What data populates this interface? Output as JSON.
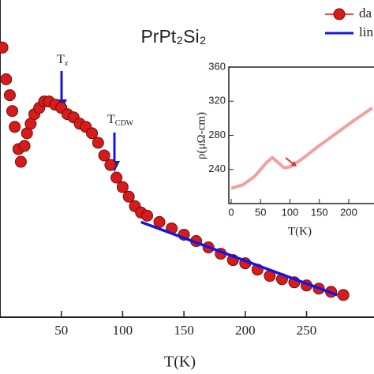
{
  "chart_data": [
    {
      "type": "scatter",
      "title": "PrPt₂Si₂",
      "xlabel": "T(K)",
      "annotations": [
        {
          "base": "T",
          "sub": "x"
        },
        {
          "base": "T",
          "sub": "CDW"
        }
      ],
      "xlim": [
        0,
        305
      ],
      "xticks": [
        50,
        100,
        150,
        200,
        250
      ],
      "ylim": [
        0,
        1
      ],
      "legend": "upper right",
      "series": [
        {
          "name": "da",
          "color": "#d41c1c",
          "marker": "circle",
          "x": [
            2,
            5,
            8,
            10,
            12,
            15,
            17,
            20,
            22,
            25,
            28,
            32,
            36,
            40,
            45,
            50,
            55,
            60,
            65,
            70,
            75,
            80,
            85,
            90,
            95,
            100,
            105,
            110,
            115,
            120,
            130,
            140,
            150,
            160,
            170,
            180,
            190,
            200,
            210,
            220,
            230,
            240,
            250,
            260,
            270,
            280
          ],
          "values": [
            0.85,
            0.75,
            0.7,
            0.65,
            0.6,
            0.53,
            0.49,
            0.54,
            0.58,
            0.61,
            0.64,
            0.66,
            0.68,
            0.68,
            0.67,
            0.66,
            0.64,
            0.63,
            0.61,
            0.6,
            0.58,
            0.55,
            0.51,
            0.48,
            0.44,
            0.41,
            0.38,
            0.35,
            0.33,
            0.32,
            0.3,
            0.28,
            0.26,
            0.24,
            0.22,
            0.2,
            0.18,
            0.17,
            0.15,
            0.13,
            0.12,
            0.11,
            0.1,
            0.09,
            0.08,
            0.07
          ]
        },
        {
          "name": "lin",
          "color": "#1515e0",
          "marker": "line",
          "x": [
            115,
            275
          ],
          "values": [
            0.3,
            0.07
          ]
        }
      ]
    },
    {
      "type": "line",
      "xlabel": "T(K)",
      "ylabel": "ρ(μΩ-cm)",
      "xlim": [
        -4,
        243
      ],
      "xticks": [
        0,
        50,
        100,
        150,
        200
      ],
      "ylim": [
        200,
        360
      ],
      "yticks": [
        240,
        280,
        320,
        360
      ],
      "series": [
        {
          "color": "#f2a0a0",
          "x": [
            0,
            20,
            40,
            60,
            70,
            80,
            90,
            100,
            120,
            150,
            180,
            210,
            240
          ],
          "values": [
            218,
            222,
            232,
            248,
            254,
            248,
            242,
            243,
            252,
            268,
            283,
            298,
            312
          ]
        }
      ]
    }
  ]
}
